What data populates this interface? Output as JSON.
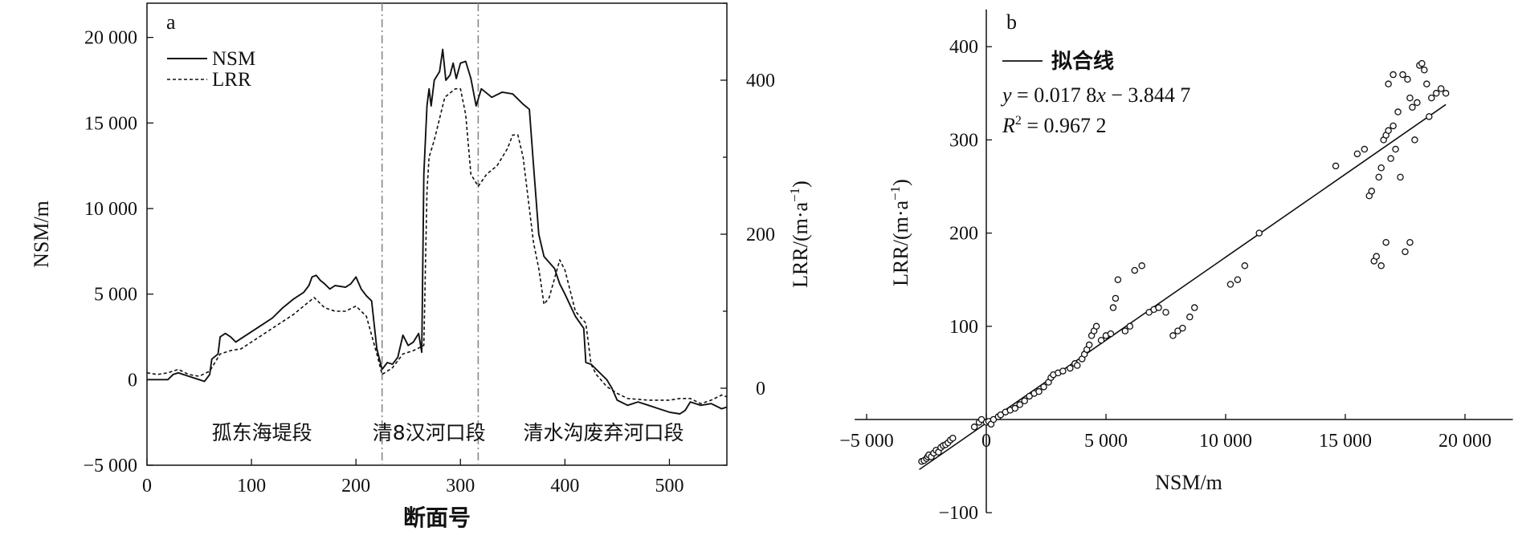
{
  "chart_data": [
    {
      "panel_label": "a",
      "type": "line",
      "xlabel": "断面号",
      "ylabel_left": "NSM/m",
      "ylabel_right": "LRR/(m·a",
      "ylabel_right_sup": "−1",
      "ylabel_right_close": ")",
      "xlim": [
        0,
        555
      ],
      "ylim_left": [
        -5000,
        22000
      ],
      "ylim_right": [
        -100,
        500
      ],
      "x_ticks": [
        0,
        100,
        200,
        300,
        400,
        500
      ],
      "x_tick_labels": [
        "0",
        "100",
        "200",
        "300",
        "400",
        "500"
      ],
      "y_left_ticks": [
        -5000,
        0,
        5000,
        10000,
        15000,
        20000
      ],
      "y_left_tick_labels": [
        "−5 000",
        "0",
        "5 000",
        "10 000",
        "15 000",
        "20 000"
      ],
      "y_right_ticks": [
        0,
        200,
        400
      ],
      "y_right_tick_labels": [
        "0",
        "200",
        "400"
      ],
      "dividers_x": [
        225,
        317
      ],
      "segment_labels": [
        {
          "text": "孤东海堤段",
          "x": 110
        },
        {
          "text": "清8汉河口段",
          "x": 270
        },
        {
          "text": "清水沟废弃河口段",
          "x": 437
        }
      ],
      "legend": [
        "NSM",
        "LRR"
      ],
      "series": [
        {
          "name": "NSM",
          "style": "solid",
          "axis": "left",
          "points": [
            [
              0,
              0
            ],
            [
              20,
              0
            ],
            [
              25,
              300
            ],
            [
              30,
              400
            ],
            [
              40,
              200
            ],
            [
              50,
              0
            ],
            [
              55,
              -100
            ],
            [
              60,
              300
            ],
            [
              62,
              1200
            ],
            [
              68,
              1500
            ],
            [
              70,
              2500
            ],
            [
              75,
              2700
            ],
            [
              80,
              2500
            ],
            [
              85,
              2200
            ],
            [
              90,
              2400
            ],
            [
              100,
              2800
            ],
            [
              110,
              3200
            ],
            [
              120,
              3600
            ],
            [
              130,
              4200
            ],
            [
              140,
              4700
            ],
            [
              150,
              5100
            ],
            [
              155,
              5500
            ],
            [
              158,
              6000
            ],
            [
              162,
              6100
            ],
            [
              166,
              5800
            ],
            [
              170,
              5600
            ],
            [
              175,
              5300
            ],
            [
              180,
              5500
            ],
            [
              190,
              5400
            ],
            [
              195,
              5600
            ],
            [
              200,
              6000
            ],
            [
              205,
              5300
            ],
            [
              210,
              4900
            ],
            [
              215,
              4600
            ],
            [
              220,
              1800
            ],
            [
              225,
              600
            ],
            [
              230,
              1000
            ],
            [
              235,
              900
            ],
            [
              240,
              1300
            ],
            [
              245,
              2600
            ],
            [
              250,
              2000
            ],
            [
              255,
              2200
            ],
            [
              260,
              2700
            ],
            [
              263,
              1600
            ],
            [
              265,
              12000
            ],
            [
              268,
              16000
            ],
            [
              270,
              17000
            ],
            [
              272,
              16000
            ],
            [
              275,
              17500
            ],
            [
              280,
              18000
            ],
            [
              283,
              19300
            ],
            [
              286,
              17500
            ],
            [
              290,
              17800
            ],
            [
              293,
              18500
            ],
            [
              296,
              17600
            ],
            [
              300,
              18500
            ],
            [
              305,
              18600
            ],
            [
              310,
              17600
            ],
            [
              315,
              16000
            ],
            [
              320,
              17000
            ],
            [
              330,
              16500
            ],
            [
              340,
              16800
            ],
            [
              350,
              16700
            ],
            [
              360,
              16100
            ],
            [
              366,
              15800
            ],
            [
              370,
              12500
            ],
            [
              375,
              8500
            ],
            [
              380,
              7200
            ],
            [
              390,
              6500
            ],
            [
              395,
              5600
            ],
            [
              400,
              5000
            ],
            [
              410,
              3700
            ],
            [
              418,
              3000
            ],
            [
              420,
              1000
            ],
            [
              425,
              900
            ],
            [
              430,
              600
            ],
            [
              440,
              0
            ],
            [
              445,
              -500
            ],
            [
              450,
              -1200
            ],
            [
              460,
              -1500
            ],
            [
              470,
              -1300
            ],
            [
              480,
              -1500
            ],
            [
              490,
              -1700
            ],
            [
              500,
              -1900
            ],
            [
              510,
              -2000
            ],
            [
              515,
              -1800
            ],
            [
              520,
              -1300
            ],
            [
              530,
              -1500
            ],
            [
              540,
              -1400
            ],
            [
              550,
              -1700
            ],
            [
              555,
              -1600
            ]
          ]
        },
        {
          "name": "LRR",
          "style": "dashed",
          "axis": "left",
          "points": [
            [
              0,
              400
            ],
            [
              10,
              300
            ],
            [
              20,
              400
            ],
            [
              30,
              600
            ],
            [
              40,
              300
            ],
            [
              50,
              200
            ],
            [
              60,
              500
            ],
            [
              70,
              1500
            ],
            [
              80,
              1700
            ],
            [
              90,
              1800
            ],
            [
              100,
              2200
            ],
            [
              110,
              2600
            ],
            [
              120,
              3000
            ],
            [
              130,
              3400
            ],
            [
              140,
              3800
            ],
            [
              150,
              4300
            ],
            [
              160,
              4800
            ],
            [
              165,
              4500
            ],
            [
              170,
              4200
            ],
            [
              180,
              4000
            ],
            [
              190,
              4000
            ],
            [
              200,
              4300
            ],
            [
              210,
              3700
            ],
            [
              220,
              1500
            ],
            [
              225,
              300
            ],
            [
              235,
              700
            ],
            [
              245,
              1500
            ],
            [
              255,
              1700
            ],
            [
              265,
              2000
            ],
            [
              268,
              11000
            ],
            [
              270,
              13000
            ],
            [
              275,
              14000
            ],
            [
              285,
              16500
            ],
            [
              295,
              17000
            ],
            [
              300,
              17000
            ],
            [
              305,
              15500
            ],
            [
              310,
              12000
            ],
            [
              317,
              11300
            ],
            [
              325,
              12000
            ],
            [
              335,
              12500
            ],
            [
              345,
              13500
            ],
            [
              350,
              14300
            ],
            [
              355,
              14300
            ],
            [
              360,
              13000
            ],
            [
              370,
              8000
            ],
            [
              375,
              6500
            ],
            [
              380,
              4400
            ],
            [
              385,
              4800
            ],
            [
              395,
              7000
            ],
            [
              400,
              6400
            ],
            [
              410,
              4000
            ],
            [
              420,
              3300
            ],
            [
              425,
              900
            ],
            [
              430,
              300
            ],
            [
              440,
              -400
            ],
            [
              450,
              -800
            ],
            [
              460,
              -1100
            ],
            [
              480,
              -1200
            ],
            [
              500,
              -1200
            ],
            [
              510,
              -1100
            ],
            [
              520,
              -1100
            ],
            [
              530,
              -1400
            ],
            [
              540,
              -1200
            ],
            [
              550,
              -900
            ],
            [
              555,
              -1000
            ]
          ]
        }
      ]
    },
    {
      "panel_label": "b",
      "type": "scatter",
      "xlabel": "NSM/m",
      "ylabel": "LRR/(m·a",
      "ylabel_sup": "−1",
      "ylabel_close": ")",
      "xlim": [
        -5500,
        22000
      ],
      "ylim": [
        -100,
        440
      ],
      "x_ticks": [
        -5000,
        0,
        5000,
        10000,
        15000,
        20000
      ],
      "x_tick_labels": [
        "−5 000",
        "0",
        "5 000",
        "10 000",
        "15 000",
        "20 000"
      ],
      "y_ticks": [
        -100,
        100,
        200,
        300,
        400
      ],
      "y_tick_labels": [
        "−100",
        "100",
        "200",
        "300",
        "400"
      ],
      "legend": [
        "拟合线"
      ],
      "equation_prefix": "y",
      "equation_mid": " = 0.017 8",
      "equation_var": "x",
      "equation_suffix": " − 3.844 7",
      "r2_prefix": "R",
      "r2_sup": "2",
      "r2_suffix": " = 0.967 2",
      "fit": {
        "slope": 0.0178,
        "intercept": -3.8447,
        "x_range": [
          -2800,
          19200
        ]
      },
      "points": [
        [
          -2700,
          -45
        ],
        [
          -2600,
          -44
        ],
        [
          -2500,
          -42
        ],
        [
          -2450,
          -40
        ],
        [
          -2400,
          -38
        ],
        [
          -2300,
          -40
        ],
        [
          -2200,
          -36
        ],
        [
          -2100,
          -33
        ],
        [
          -2000,
          -35
        ],
        [
          -1900,
          -30
        ],
        [
          -1800,
          -28
        ],
        [
          -1700,
          -27
        ],
        [
          -1600,
          -25
        ],
        [
          -1500,
          -22
        ],
        [
          -1400,
          -20
        ],
        [
          -500,
          -8
        ],
        [
          -300,
          -3
        ],
        [
          -200,
          0
        ],
        [
          0,
          -3
        ],
        [
          100,
          -2
        ],
        [
          200,
          -5
        ],
        [
          300,
          0
        ],
        [
          500,
          3
        ],
        [
          600,
          5
        ],
        [
          800,
          8
        ],
        [
          1000,
          10
        ],
        [
          1200,
          12
        ],
        [
          1400,
          16
        ],
        [
          1600,
          20
        ],
        [
          1800,
          25
        ],
        [
          2000,
          28
        ],
        [
          2200,
          30
        ],
        [
          2400,
          35
        ],
        [
          2600,
          40
        ],
        [
          2700,
          45
        ],
        [
          2800,
          48
        ],
        [
          3000,
          50
        ],
        [
          3200,
          52
        ],
        [
          3500,
          55
        ],
        [
          3700,
          60
        ],
        [
          3800,
          58
        ],
        [
          4000,
          65
        ],
        [
          4100,
          70
        ],
        [
          4200,
          75
        ],
        [
          4300,
          80
        ],
        [
          4400,
          90
        ],
        [
          4500,
          95
        ],
        [
          4600,
          100
        ],
        [
          4800,
          85
        ],
        [
          5000,
          90
        ],
        [
          5200,
          92
        ],
        [
          5300,
          120
        ],
        [
          5400,
          130
        ],
        [
          5500,
          150
        ],
        [
          5800,
          95
        ],
        [
          6000,
          100
        ],
        [
          6200,
          160
        ],
        [
          6500,
          165
        ],
        [
          6800,
          115
        ],
        [
          7000,
          118
        ],
        [
          7200,
          120
        ],
        [
          7500,
          115
        ],
        [
          7800,
          90
        ],
        [
          8000,
          95
        ],
        [
          8200,
          98
        ],
        [
          8500,
          110
        ],
        [
          8700,
          120
        ],
        [
          10200,
          145
        ],
        [
          10500,
          150
        ],
        [
          10800,
          165
        ],
        [
          11400,
          200
        ],
        [
          14600,
          272
        ],
        [
          15500,
          285
        ],
        [
          15800,
          290
        ],
        [
          16000,
          240
        ],
        [
          16100,
          245
        ],
        [
          16200,
          170
        ],
        [
          16300,
          175
        ],
        [
          16400,
          260
        ],
        [
          16500,
          270
        ],
        [
          16600,
          300
        ],
        [
          16700,
          305
        ],
        [
          16800,
          310
        ],
        [
          16900,
          280
        ],
        [
          17000,
          315
        ],
        [
          17100,
          290
        ],
        [
          17200,
          330
        ],
        [
          17300,
          260
        ],
        [
          17400,
          370
        ],
        [
          17500,
          180
        ],
        [
          17600,
          365
        ],
        [
          17700,
          190
        ],
        [
          17800,
          335
        ],
        [
          18000,
          340
        ],
        [
          18100,
          380
        ],
        [
          18200,
          382
        ],
        [
          18300,
          375
        ],
        [
          18400,
          360
        ],
        [
          18600,
          345
        ],
        [
          18800,
          350
        ],
        [
          19000,
          355
        ],
        [
          19200,
          350
        ],
        [
          18500,
          325
        ],
        [
          17900,
          300
        ],
        [
          17700,
          345
        ],
        [
          17000,
          370
        ],
        [
          16800,
          360
        ],
        [
          16700,
          190
        ],
        [
          16500,
          165
        ]
      ]
    }
  ]
}
